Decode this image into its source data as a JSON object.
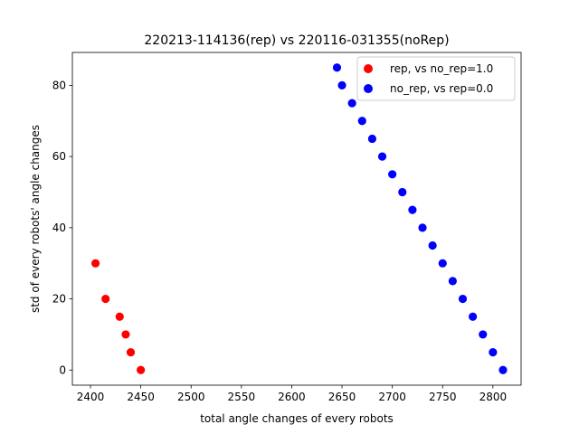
{
  "chart_data": {
    "type": "scatter",
    "title": "220213-114136(rep) vs 220116-031355(noRep)",
    "xlabel": "total angle changes of every robots",
    "ylabel": "std of every robots' angle changes",
    "xlim": [
      2382,
      2828
    ],
    "ylim": [
      -4.25,
      89.25
    ],
    "xticks": [
      2400,
      2450,
      2500,
      2550,
      2600,
      2650,
      2700,
      2750,
      2800
    ],
    "yticks": [
      0,
      20,
      40,
      60,
      80
    ],
    "grid": false,
    "legend_position": "top-right",
    "series": [
      {
        "name": "rep, vs no_rep=1.0",
        "color": "#ff0000",
        "points": [
          [
            2405,
            30
          ],
          [
            2415,
            20
          ],
          [
            2429,
            15
          ],
          [
            2435,
            10
          ],
          [
            2440,
            5
          ],
          [
            2450,
            0
          ]
        ]
      },
      {
        "name": "no_rep, vs rep=0.0",
        "color": "#0000ff",
        "points": [
          [
            2645,
            85
          ],
          [
            2650,
            80
          ],
          [
            2660,
            75
          ],
          [
            2670,
            70
          ],
          [
            2680,
            65
          ],
          [
            2690,
            60
          ],
          [
            2700,
            55
          ],
          [
            2710,
            50
          ],
          [
            2720,
            45
          ],
          [
            2730,
            40
          ],
          [
            2740,
            35
          ],
          [
            2750,
            30
          ],
          [
            2760,
            25
          ],
          [
            2770,
            20
          ],
          [
            2780,
            15
          ],
          [
            2790,
            10
          ],
          [
            2800,
            5
          ],
          [
            2810,
            0
          ]
        ]
      }
    ]
  }
}
